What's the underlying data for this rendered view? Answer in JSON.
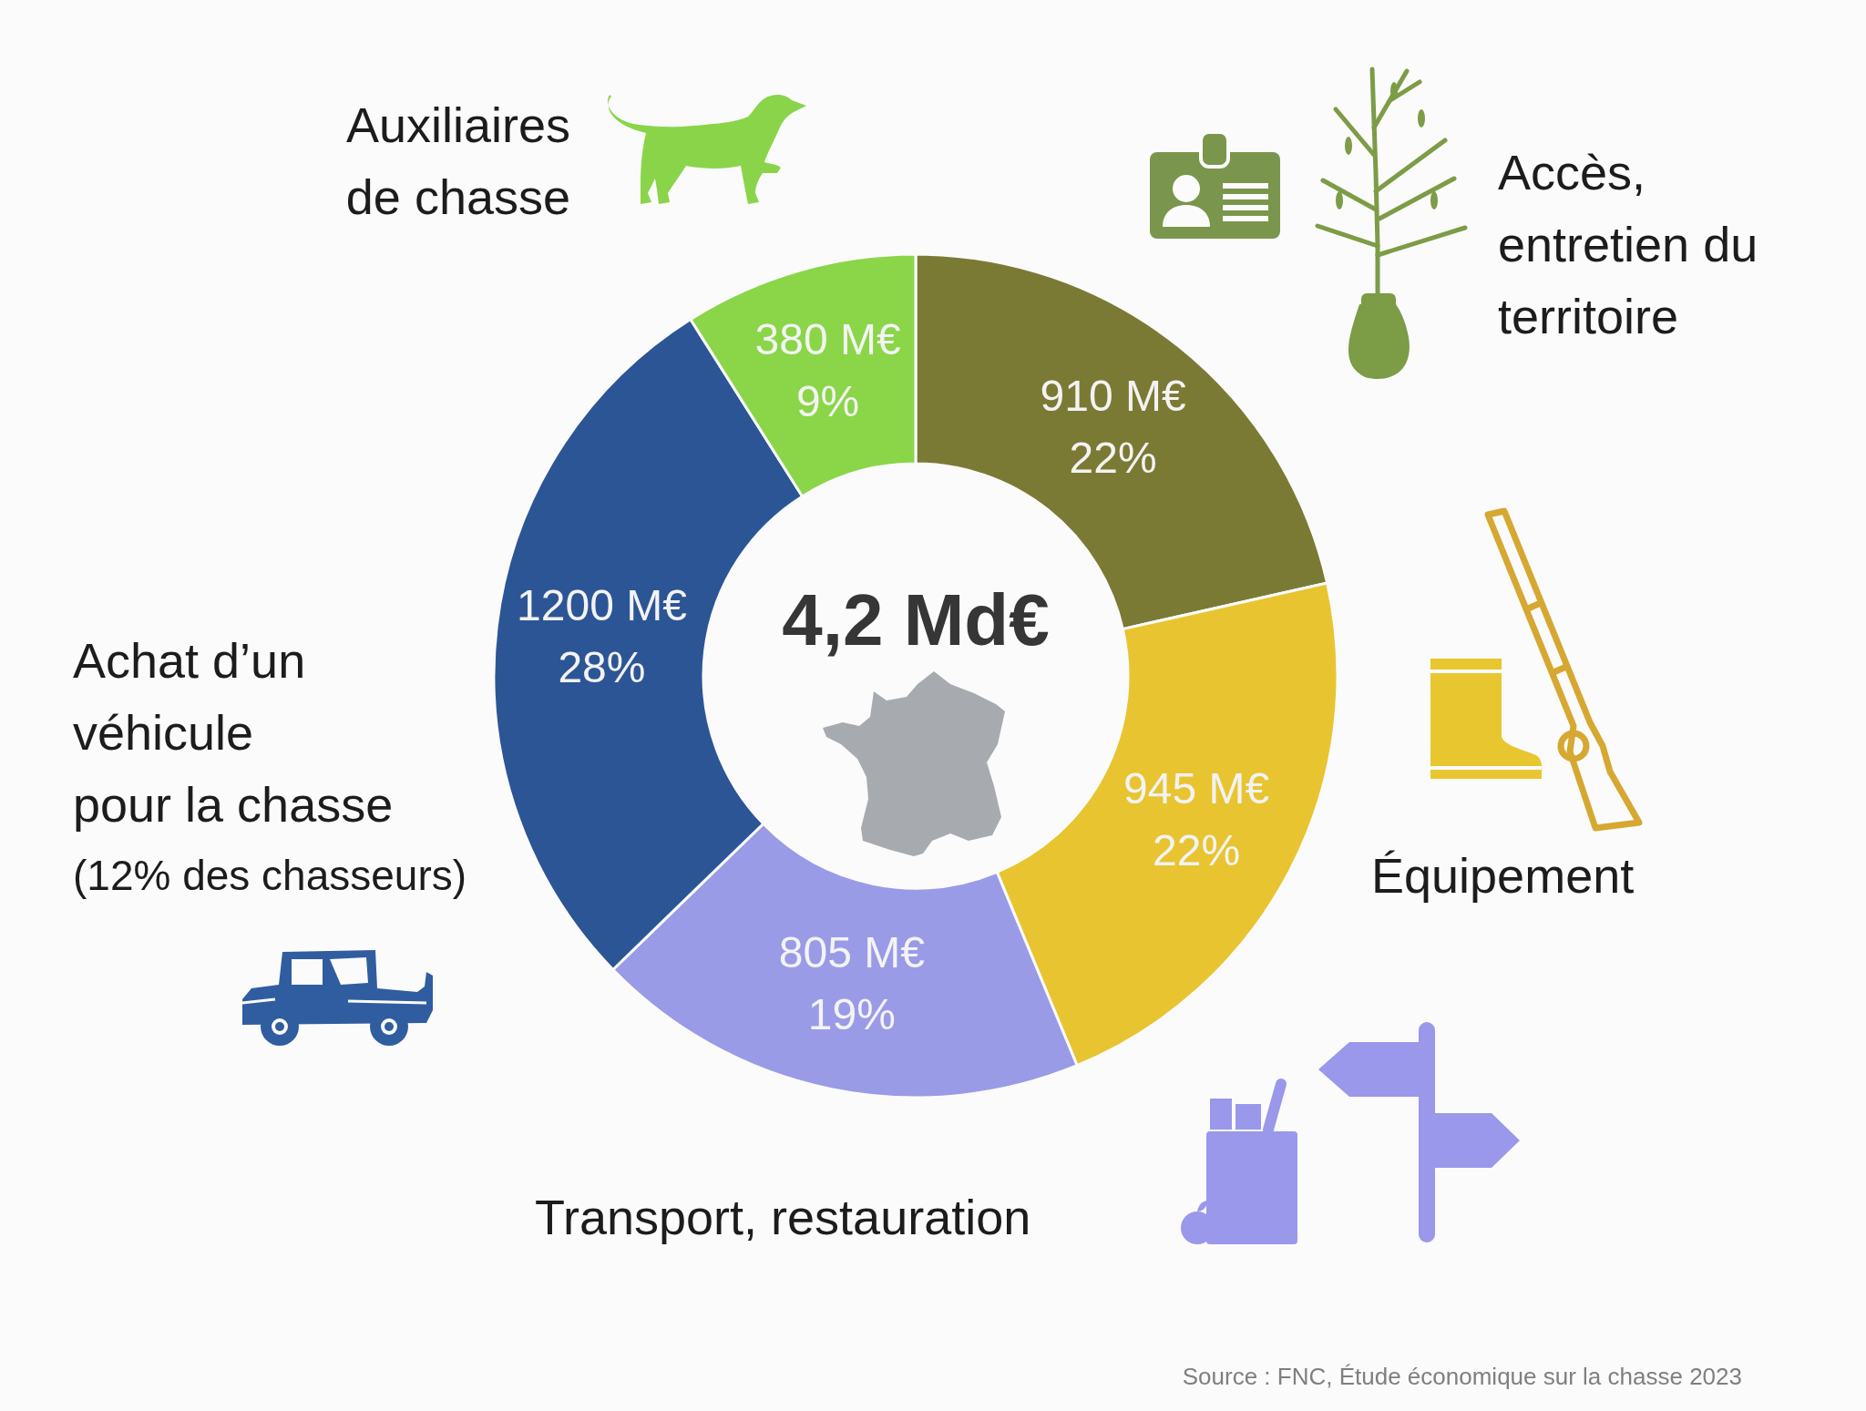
{
  "chart_data": {
    "type": "donut",
    "categories": [
      "Accès, entretien du territoire",
      "Équipement",
      "Transport, restauration",
      "Achat d’un véhicule pour la chasse",
      "Auxiliaires de chasse"
    ],
    "values": [
      910,
      945,
      805,
      1200,
      380
    ],
    "colors": [
      "#7b7a35",
      "#e8c431",
      "#9a9be6",
      "#2c5596",
      "#8ad648"
    ],
    "value_labels": [
      "910 M€ 22%",
      "945 M€ 22%",
      "805 M€ 19%",
      "1200 M€ 28%",
      "380 M€ 9%"
    ],
    "annotations": [
      "4,2 Md€",
      "(12% des chasseurs)",
      "Source : FNC, Étude économique sur la chasse 2023"
    ]
  }
}
